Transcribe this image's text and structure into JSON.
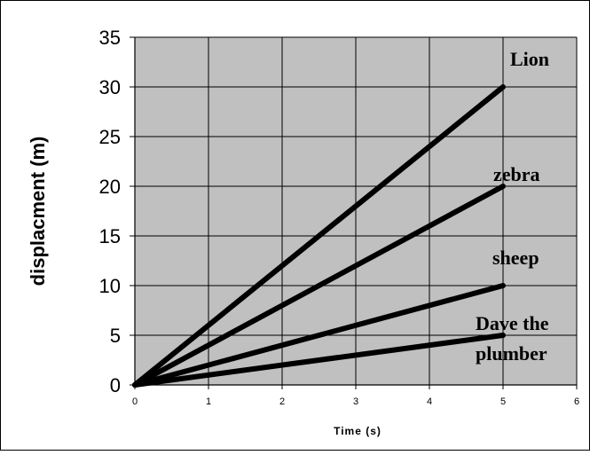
{
  "chart_data": {
    "type": "line",
    "title": "",
    "xlabel": "Time (s)",
    "ylabel": "displacment (m)",
    "xlim": [
      0,
      6
    ],
    "ylim": [
      0,
      35
    ],
    "xticks": [
      0,
      1,
      2,
      3,
      4,
      5,
      6
    ],
    "yticks": [
      0,
      5,
      10,
      15,
      20,
      25,
      30,
      35
    ],
    "grid": true,
    "plot_background": "#c0c0c0",
    "line_color": "#000000",
    "legend": "none",
    "series": [
      {
        "name": "Lion",
        "x": [
          0,
          5
        ],
        "y": [
          0,
          30
        ]
      },
      {
        "name": "zebra",
        "x": [
          0,
          5
        ],
        "y": [
          0,
          20
        ]
      },
      {
        "name": "sheep",
        "x": [
          0,
          5
        ],
        "y": [
          0,
          10
        ]
      },
      {
        "name": "Dave the plumber",
        "x": [
          0,
          5
        ],
        "y": [
          0,
          5
        ]
      }
    ],
    "annotations": {
      "lion": "Lion",
      "zebra": "zebra",
      "sheep": "sheep",
      "dave_line1": "Dave the",
      "dave_line2": "plumber"
    }
  }
}
